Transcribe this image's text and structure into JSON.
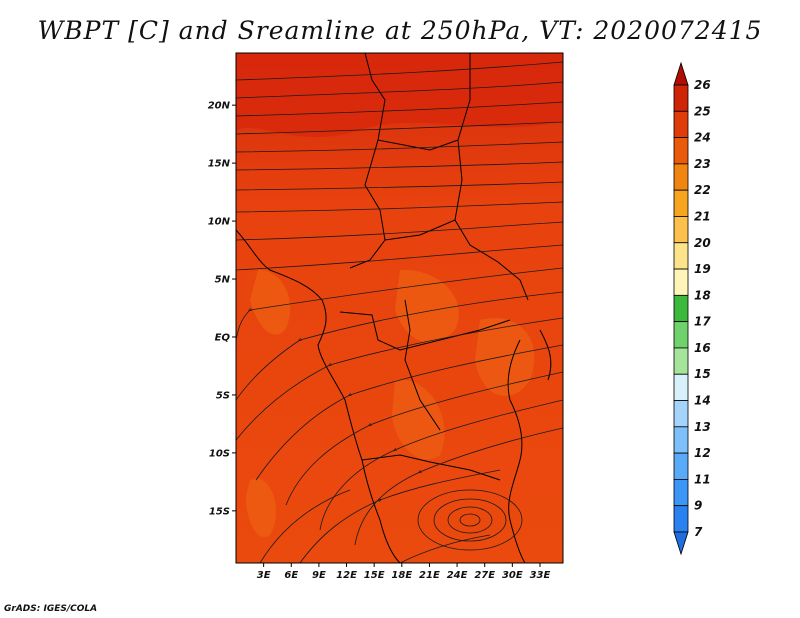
{
  "title": "WBPT [C] and Sreamline at 250hPa, VT: 2020072415",
  "credit": "GrADS: IGES/COLA",
  "map": {
    "lon_range": [
      0,
      35.5
    ],
    "lat_range": [
      -19.5,
      24.5
    ],
    "lat_ticks": [
      {
        "value": 20,
        "label": "20N"
      },
      {
        "value": 15,
        "label": "15N"
      },
      {
        "value": 10,
        "label": "10N"
      },
      {
        "value": 5,
        "label": "5N"
      },
      {
        "value": 0,
        "label": "EQ"
      },
      {
        "value": -5,
        "label": "5S"
      },
      {
        "value": -10,
        "label": "10S"
      },
      {
        "value": -15,
        "label": "15S"
      }
    ],
    "lon_ticks": [
      {
        "value": 3,
        "label": "3E"
      },
      {
        "value": 6,
        "label": "6E"
      },
      {
        "value": 9,
        "label": "9E"
      },
      {
        "value": 12,
        "label": "12E"
      },
      {
        "value": 15,
        "label": "15E"
      },
      {
        "value": 18,
        "label": "18E"
      },
      {
        "value": 21,
        "label": "21E"
      },
      {
        "value": 24,
        "label": "24E"
      },
      {
        "value": 27,
        "label": "27E"
      },
      {
        "value": 30,
        "label": "30E"
      },
      {
        "value": 33,
        "label": "33E"
      }
    ],
    "field_colors": {
      "warm_band": "#dd2c10",
      "core": "#ea4a0e",
      "pale": "#f06a14"
    },
    "streamline_color": "#1a1a1a",
    "border_color": "#000000"
  },
  "colorbar": {
    "levels": [
      "7",
      "9",
      "11",
      "12",
      "13",
      "14",
      "15",
      "16",
      "17",
      "18",
      "19",
      "20",
      "21",
      "22",
      "23",
      "24",
      "25",
      "26"
    ],
    "colors": [
      "#1e6ee0",
      "#2a82f0",
      "#3c96f5",
      "#5aabf7",
      "#7ec0fa",
      "#a5d4fb",
      "#d8f0fa",
      "#a6e49c",
      "#6fd26c",
      "#3cb83c",
      "#fff5b8",
      "#fde48a",
      "#fbc14c",
      "#f7a41f",
      "#f18512",
      "#ea5a0b",
      "#df3c0a",
      "#cf2405",
      "#b10e03"
    ]
  }
}
